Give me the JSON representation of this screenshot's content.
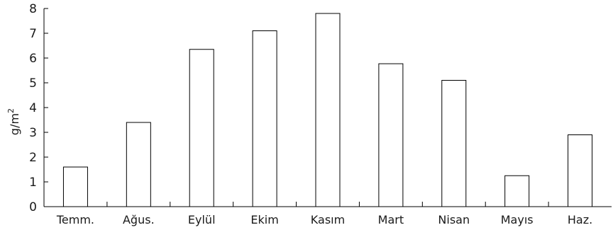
{
  "chart_data": {
    "type": "bar",
    "categories": [
      "Temm.",
      "Ağus.",
      "Eylül",
      "Ekim",
      "Kasım",
      "Mart",
      "Nisan",
      "Mayıs",
      "Haz."
    ],
    "values": [
      1.6,
      3.4,
      6.35,
      7.1,
      7.8,
      5.77,
      5.1,
      1.25,
      2.9
    ],
    "ylabel": "g/m",
    "ylabel_superscript": "2",
    "ylim": [
      0,
      8
    ],
    "yticks": [
      "0",
      "1",
      "2",
      "3",
      "4",
      "5",
      "6",
      "7",
      "8"
    ],
    "grid": false,
    "bar_fill": "#ffffff",
    "bar_stroke": "#000000"
  }
}
